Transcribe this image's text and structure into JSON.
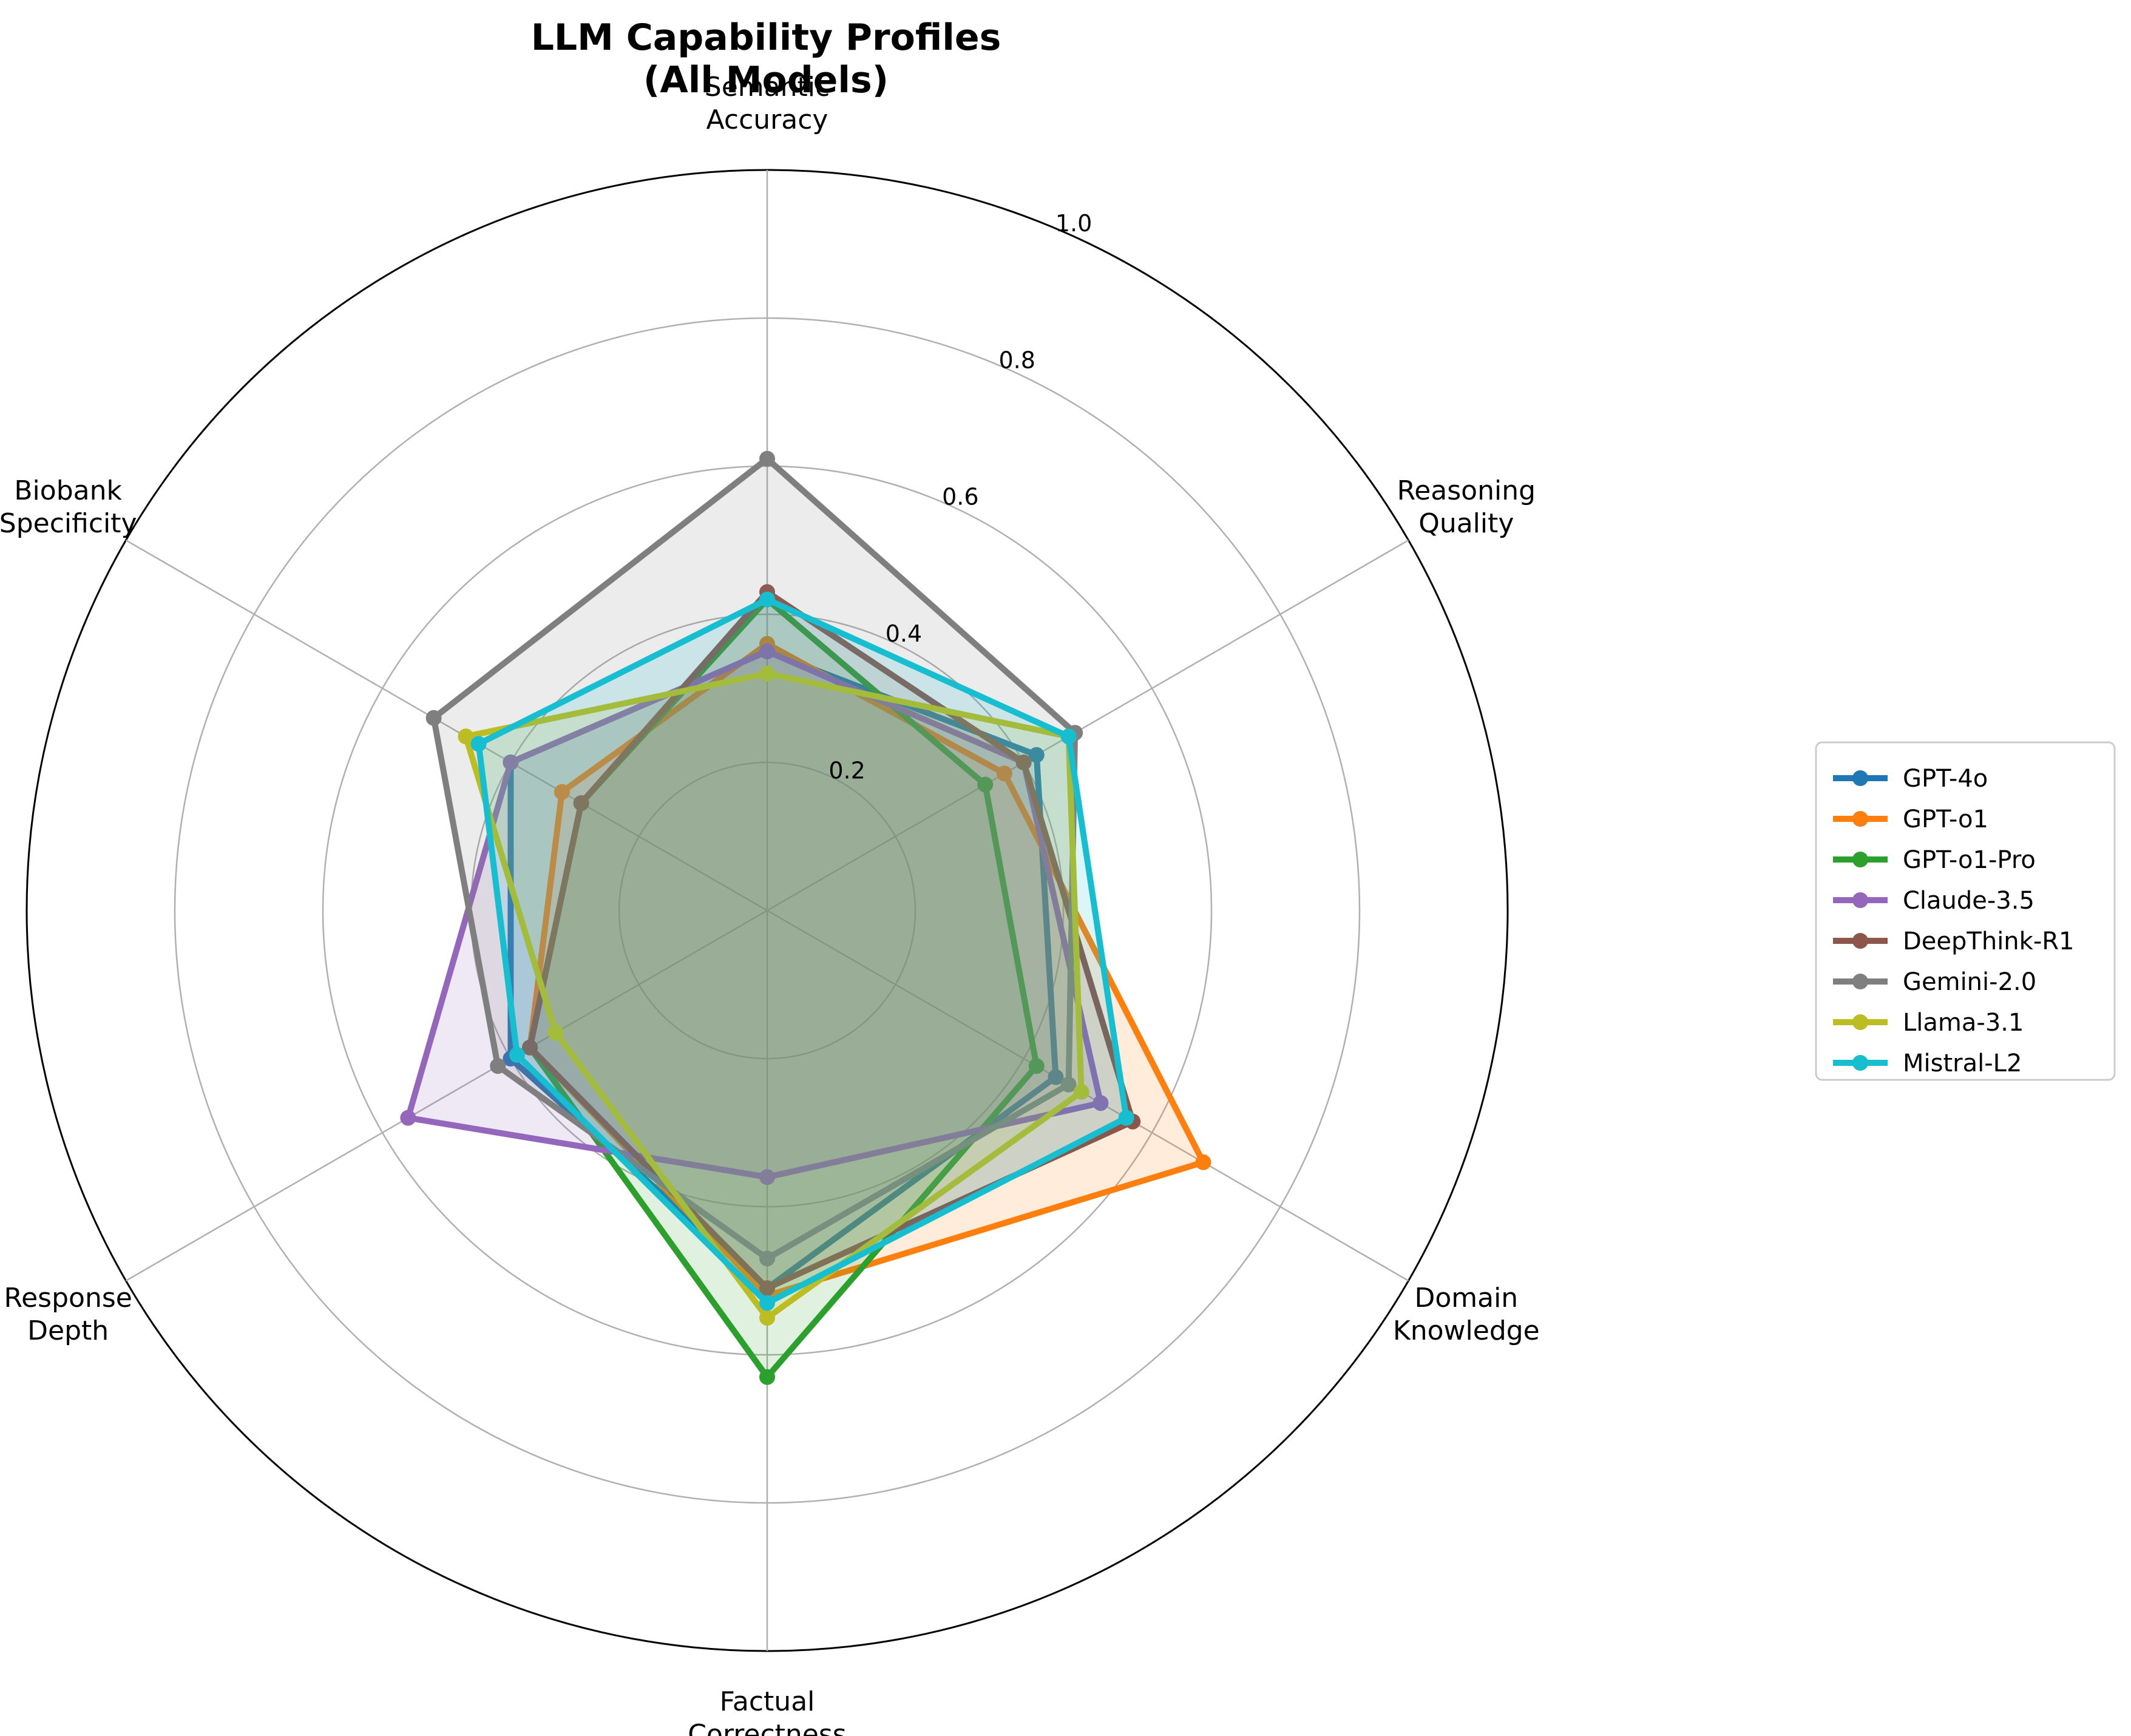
{
  "chart_data": {
    "type": "radar",
    "title": [
      "LLM Capability Profiles",
      "(All Models)"
    ],
    "axes": [
      [
        "Semantic",
        "Accuracy"
      ],
      [
        "Reasoning",
        "Quality"
      ],
      [
        "Domain",
        "Knowledge"
      ],
      [
        "Factual",
        "Correctness"
      ],
      [
        "Response",
        "Depth"
      ],
      [
        "Biobank",
        "Specificity"
      ]
    ],
    "rlim": [
      0,
      1.0
    ],
    "r_ticks": [
      "0.2",
      "0.4",
      "0.6",
      "0.8",
      "1.0"
    ],
    "r_tick_values": [
      0.2,
      0.4,
      0.6,
      0.8,
      1.0
    ],
    "grid": true,
    "legend_position": "right",
    "series": [
      {
        "name": "GPT-4o",
        "color": "#1f77b4",
        "values": [
          0.35,
          0.42,
          0.45,
          0.51,
          0.4,
          0.4
        ]
      },
      {
        "name": "GPT-o1",
        "color": "#ff7f0e",
        "values": [
          0.36,
          0.37,
          0.68,
          0.52,
          0.37,
          0.32
        ]
      },
      {
        "name": "GPT-o1-Pro",
        "color": "#2ca02c",
        "values": [
          0.42,
          0.34,
          0.42,
          0.63,
          0.37,
          0.29
        ]
      },
      {
        "name": "Claude-3.5",
        "color": "#9467bd",
        "values": [
          0.35,
          0.4,
          0.52,
          0.36,
          0.56,
          0.4
        ]
      },
      {
        "name": "DeepThink-R1",
        "color": "#8c564b",
        "values": [
          0.43,
          0.4,
          0.57,
          0.51,
          0.37,
          0.29
        ]
      },
      {
        "name": "Gemini-2.0",
        "color": "#7f7f7f",
        "values": [
          0.61,
          0.48,
          0.47,
          0.47,
          0.42,
          0.52
        ]
      },
      {
        "name": "Llama-3.1",
        "color": "#bcbd22",
        "values": [
          0.32,
          0.47,
          0.49,
          0.55,
          0.33,
          0.47
        ]
      },
      {
        "name": "Mistral-L2",
        "color": "#17becf",
        "values": [
          0.42,
          0.47,
          0.56,
          0.53,
          0.39,
          0.45
        ]
      }
    ]
  }
}
